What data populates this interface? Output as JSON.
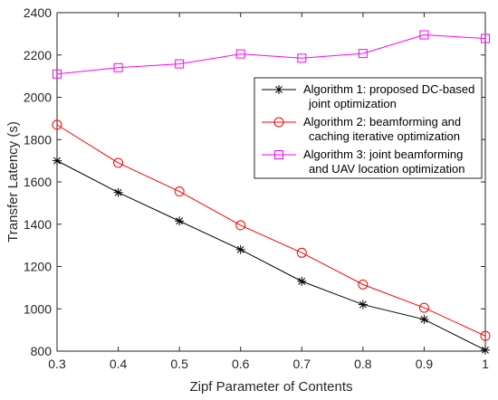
{
  "chart_data": {
    "type": "line",
    "xlabel": "Zipf Parameter of Contents",
    "ylabel": "Transfer Latency (s)",
    "xlim": [
      0.3,
      1.0
    ],
    "ylim": [
      800,
      2400
    ],
    "xticks": [
      "0.3",
      "0.4",
      "0.5",
      "0.6",
      "0.7",
      "0.8",
      "0.9",
      "1"
    ],
    "yticks": [
      "800",
      "1000",
      "1200",
      "1400",
      "1600",
      "1800",
      "2000",
      "2200",
      "2400"
    ],
    "x": [
      0.3,
      0.4,
      0.5,
      0.6,
      0.7,
      0.8,
      0.9,
      1.0
    ],
    "grid": false,
    "legend_position": "top-right",
    "series": [
      {
        "name": "Algorithm 1: proposed DC-based joint optimization",
        "legend_lines": [
          "Algorithm 1: proposed DC-based",
          "joint optimization"
        ],
        "color": "#000000",
        "marker": "asterisk",
        "values": [
          1700,
          1550,
          1415,
          1280,
          1130,
          1020,
          950,
          805
        ]
      },
      {
        "name": "Algorithm 2: beamforming and caching iterative optimization",
        "legend_lines": [
          "Algorithm 2: beamforming and",
          "caching iterative optimization"
        ],
        "color": "#ff0000",
        "marker": "circle",
        "values": [
          1870,
          1690,
          1555,
          1395,
          1265,
          1115,
          1005,
          872
        ]
      },
      {
        "name": "Algorithm 3: joint beamforming and UAV location optimization",
        "legend_lines": [
          "Algorithm 3: joint beamforming",
          "and UAV location optimization"
        ],
        "color": "#ff00ff",
        "marker": "square",
        "values": [
          2110,
          2140,
          2158,
          2205,
          2185,
          2207,
          2295,
          2278
        ]
      }
    ]
  }
}
